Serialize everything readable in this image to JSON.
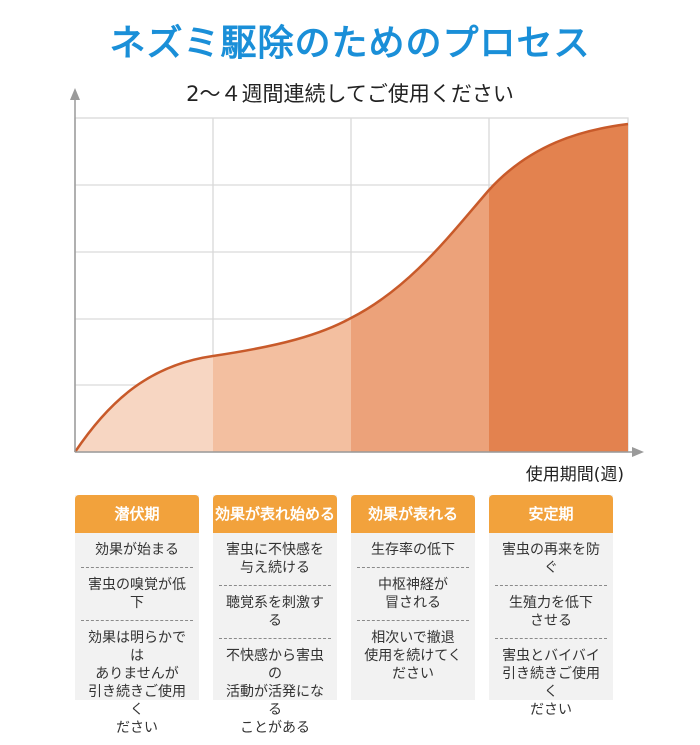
{
  "title": "ネズミ駆除のためのプロセス",
  "subtitle": "2～４週間連続してご使用ください",
  "chart": {
    "xlabel": "使用期間(週)",
    "colors": {
      "curve": "#c85a2a",
      "band1": "#f7d6c2",
      "band2": "#f3bfa0",
      "band3": "#eca27a",
      "band4": "#e3824f",
      "header": "#f2a23c",
      "title": "#1a8fd8"
    }
  },
  "stages": [
    {
      "label": "潜伏期",
      "items": [
        "効果が始まる",
        "害虫の嗅覚が低下",
        "効果は明らかでは\nありませんが\n引き続きご使用く\nださい"
      ]
    },
    {
      "label": "効果が表れ始める",
      "items": [
        "害虫に不快感を\n与え続ける",
        "聴覚系を刺激する",
        "不快感から害虫の\n活動が活発になる\nことがある"
      ]
    },
    {
      "label": "効果が表れる",
      "items": [
        "生存率の低下",
        "中枢神経が\n冒される",
        "相次いで撤退\n使用を続けてく\nださい"
      ]
    },
    {
      "label": "安定期",
      "items": [
        "害虫の再来を防ぐ",
        "生殖力を低下\nさせる",
        "害虫とバイバイ\n引き続きご使用く\nださい"
      ]
    }
  ]
}
